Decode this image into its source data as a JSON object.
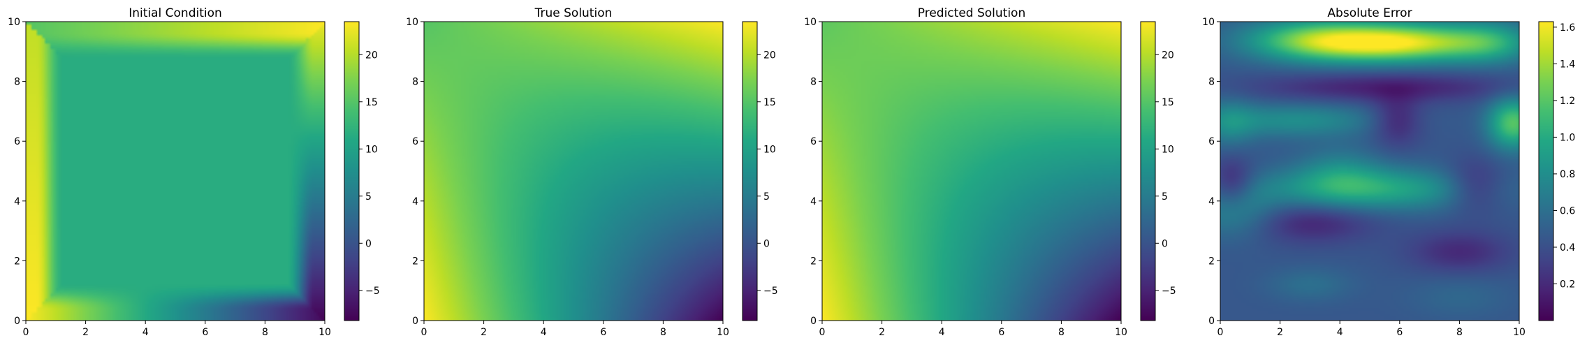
{
  "figure": {
    "background": "#ffffff",
    "colormap": "viridis"
  },
  "chart_data": [
    {
      "type": "heatmap",
      "title": "Initial Condition",
      "xlabel": "",
      "ylabel": "",
      "xlim": [
        0,
        10
      ],
      "ylim": [
        0,
        10
      ],
      "xticks": [
        "0",
        "2",
        "4",
        "6",
        "8",
        "10"
      ],
      "yticks": [
        "0",
        "2",
        "4",
        "6",
        "8",
        "10"
      ],
      "colorbar": {
        "min": -8.2,
        "max": 23.5,
        "ticks": [
          "−5",
          "0",
          "5",
          "10",
          "15",
          "20"
        ],
        "tick_values": [
          -5,
          0,
          5,
          10,
          15,
          20
        ]
      },
      "field": "initial_condition",
      "field_params": {
        "interior_value": 11.5,
        "boundary_max": 23.5,
        "boundary_min": -8.2,
        "inner_square": [
          1,
          9
        ]
      },
      "grid": false
    },
    {
      "type": "heatmap",
      "title": "True Solution",
      "xlabel": "",
      "ylabel": "",
      "xlim": [
        0,
        10
      ],
      "ylim": [
        0,
        10
      ],
      "xticks": [
        "0",
        "2",
        "4",
        "6",
        "8",
        "10"
      ],
      "yticks": [
        "0",
        "2",
        "4",
        "6",
        "8",
        "10"
      ],
      "colorbar": {
        "min": -8.2,
        "max": 23.5,
        "ticks": [
          "−5",
          "0",
          "5",
          "10",
          "15",
          "20"
        ],
        "tick_values": [
          -5,
          0,
          5,
          10,
          15,
          20
        ]
      },
      "field": "true_solution",
      "field_params": {
        "corner_top_left": 15.0,
        "corner_top_right": 23.5,
        "corner_bottom_left": 23.5,
        "corner_bottom_right": -8.2,
        "center": 10.5
      },
      "grid": false
    },
    {
      "type": "heatmap",
      "title": "Predicted Solution",
      "xlabel": "",
      "ylabel": "",
      "xlim": [
        0,
        10
      ],
      "ylim": [
        0,
        10
      ],
      "xticks": [
        "0",
        "2",
        "4",
        "6",
        "8",
        "10"
      ],
      "yticks": [
        "0",
        "2",
        "4",
        "6",
        "8",
        "10"
      ],
      "colorbar": {
        "min": -8.2,
        "max": 23.5,
        "ticks": [
          "−5",
          "0",
          "5",
          "10",
          "15",
          "20"
        ],
        "tick_values": [
          -5,
          0,
          5,
          10,
          15,
          20
        ]
      },
      "field": "predicted_solution",
      "field_params": {
        "corner_top_left": 15.5,
        "corner_top_right": 23.5,
        "corner_bottom_left": 23.5,
        "corner_bottom_right": -8.2,
        "center": 11.2
      },
      "grid": false
    },
    {
      "type": "heatmap",
      "title": "Absolute Error",
      "xlabel": "",
      "ylabel": "",
      "xlim": [
        0,
        10
      ],
      "ylim": [
        0,
        10
      ],
      "xticks": [
        "0",
        "2",
        "4",
        "6",
        "8",
        "10"
      ],
      "yticks": [
        "0",
        "2",
        "4",
        "6",
        "8",
        "10"
      ],
      "colorbar": {
        "min": 0.0,
        "max": 1.63,
        "ticks": [
          "0.2",
          "0.4",
          "0.6",
          "0.8",
          "1.0",
          "1.2",
          "1.4",
          "1.6"
        ],
        "tick_values": [
          0.2,
          0.4,
          0.6,
          0.8,
          1.0,
          1.2,
          1.4,
          1.6
        ]
      },
      "field": "absolute_error",
      "field_params": {
        "base": 0.45,
        "blobs": [
          {
            "x": 5.8,
            "y": 9.3,
            "sx": 2.2,
            "sy": 0.45,
            "a": 1.15
          },
          {
            "x": 3.0,
            "y": 9.4,
            "sx": 1.6,
            "sy": 0.5,
            "a": 0.55
          },
          {
            "x": 9.0,
            "y": 9.3,
            "sx": 1.0,
            "sy": 0.5,
            "a": 0.35
          },
          {
            "x": 5.0,
            "y": 4.4,
            "sx": 2.6,
            "sy": 0.5,
            "a": 0.55
          },
          {
            "x": 2.5,
            "y": 6.7,
            "sx": 2.0,
            "sy": 0.4,
            "a": 0.35
          },
          {
            "x": 9.8,
            "y": 6.6,
            "sx": 0.6,
            "sy": 0.6,
            "a": 0.75
          },
          {
            "x": 0.3,
            "y": 6.6,
            "sx": 0.6,
            "sy": 0.6,
            "a": 0.25
          },
          {
            "x": 0.5,
            "y": 3.6,
            "sx": 1.0,
            "sy": 0.6,
            "a": 0.3
          },
          {
            "x": 4.0,
            "y": 5.0,
            "sx": 1.0,
            "sy": 0.6,
            "a": 0.25
          },
          {
            "x": 5.5,
            "y": 7.8,
            "sx": 3.0,
            "sy": 0.35,
            "a": -0.3
          },
          {
            "x": 3.0,
            "y": 3.3,
            "sx": 1.5,
            "sy": 0.5,
            "a": -0.28
          },
          {
            "x": 8.0,
            "y": 2.3,
            "sx": 1.2,
            "sy": 0.5,
            "a": -0.25
          },
          {
            "x": 5.9,
            "y": 6.7,
            "sx": 0.6,
            "sy": 0.6,
            "a": -0.3
          },
          {
            "x": 8.5,
            "y": 4.5,
            "sx": 0.7,
            "sy": 0.6,
            "a": -0.3
          },
          {
            "x": 0.4,
            "y": 4.6,
            "sx": 0.5,
            "sy": 0.6,
            "a": -0.3
          },
          {
            "x": 3.0,
            "y": 1.2,
            "sx": 1.0,
            "sy": 0.4,
            "a": 0.15
          },
          {
            "x": 8.0,
            "y": 0.8,
            "sx": 1.2,
            "sy": 0.5,
            "a": 0.1
          }
        ]
      },
      "grid": false
    }
  ]
}
